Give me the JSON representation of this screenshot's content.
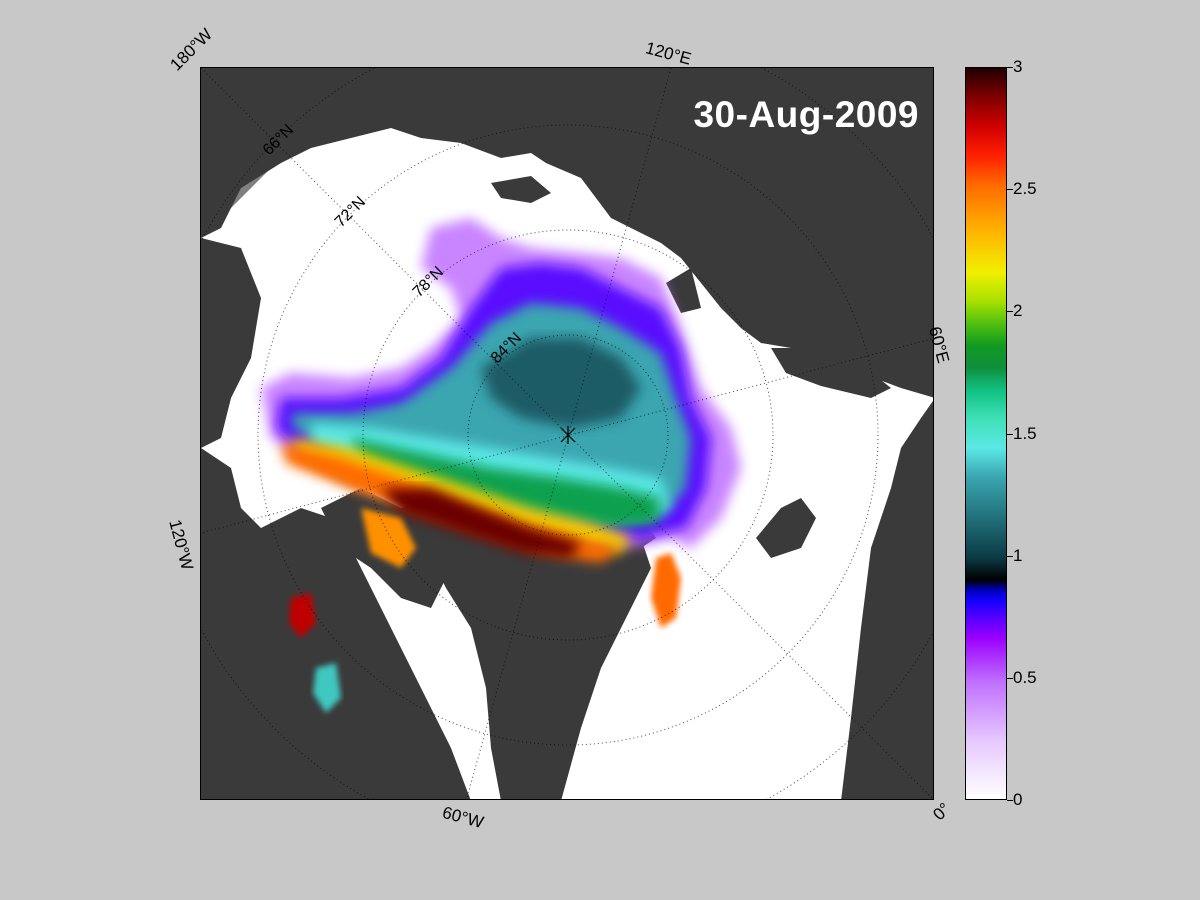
{
  "map": {
    "date": "30-Aug-2009",
    "longitude_labels": [
      "180°W",
      "120°E",
      "60°E",
      "0°",
      "60°W",
      "120°W"
    ],
    "latitude_labels": [
      "66°N",
      "72°N",
      "78°N",
      "84°N"
    ]
  },
  "colorbar": {
    "ticks": [
      "0",
      "0.5",
      "1",
      "1.5",
      "2",
      "2.5",
      "3"
    ],
    "range": [
      0,
      3
    ]
  },
  "colors": {
    "figure_background": "#c8c8c8",
    "land": "#3a3a3a",
    "open_water": "#ffffff",
    "mask": "#808080"
  }
}
